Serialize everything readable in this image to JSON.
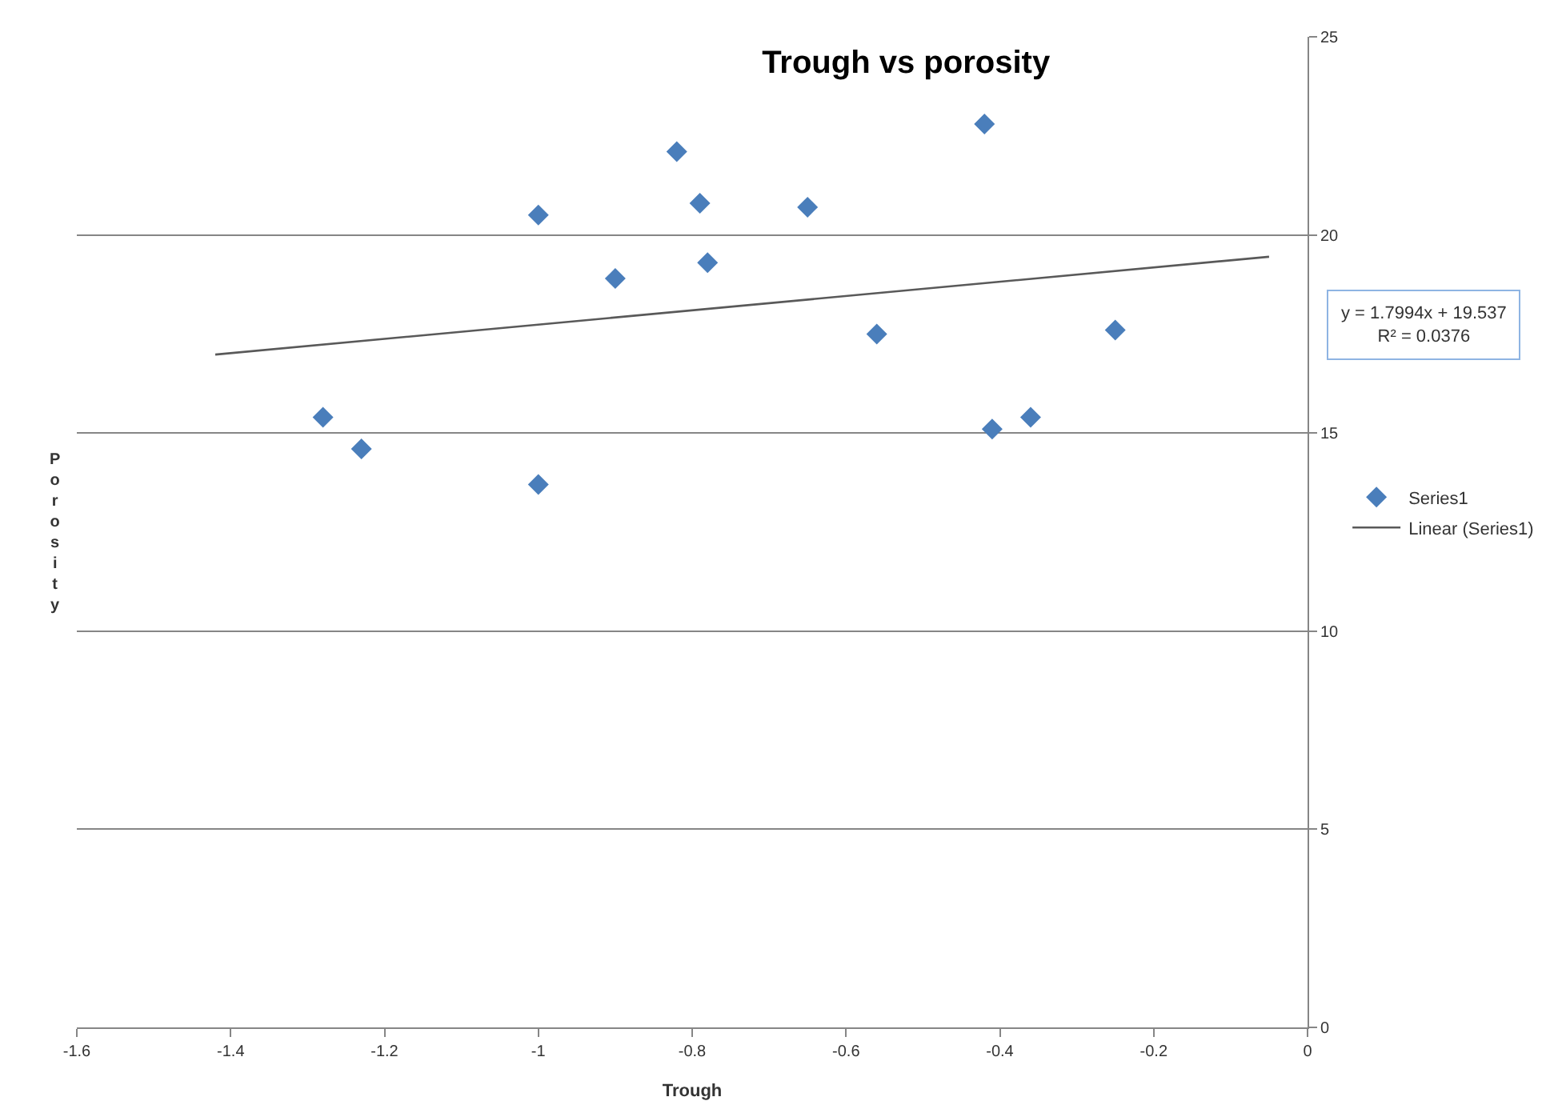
{
  "chart_data": {
    "type": "scatter",
    "title": "Trough vs porosity",
    "xlabel": "Trough",
    "ylabel": "Porosity",
    "series": [
      {
        "name": "Series1",
        "color": "#4a7ebb",
        "marker": "diamond",
        "x": [
          -1.28,
          -1.23,
          -1.0,
          -1.0,
          -0.9,
          -0.82,
          -0.79,
          -0.78,
          -0.65,
          -0.56,
          -0.42,
          -0.41,
          -0.36,
          -0.25
        ],
        "values": [
          15.4,
          14.6,
          13.7,
          20.5,
          18.9,
          22.1,
          20.8,
          19.3,
          20.7,
          17.5,
          22.8,
          15.1,
          15.4,
          17.6
        ]
      },
      {
        "name": "Linear (Series1)",
        "type": "line",
        "color": "#595959",
        "marker": "none",
        "line_style": "solid",
        "x": [
          -1.42,
          -0.05
        ],
        "values": [
          16.98,
          19.45
        ]
      }
    ],
    "annotations": [
      "y = 1.7994x + 19.537\nR² = 0.0376"
    ],
    "xlim": [
      -1.6,
      0
    ],
    "xticks": [
      {
        "value": -1.6,
        "label": "-1.6"
      },
      {
        "value": -1.4,
        "label": "-1.4"
      },
      {
        "value": -1.2,
        "label": "-1.2"
      },
      {
        "value": -1,
        "label": "-1"
      },
      {
        "value": -0.8,
        "label": "-0.8"
      },
      {
        "value": -0.6,
        "label": "-0.6"
      },
      {
        "value": -0.4,
        "label": "-0.4"
      },
      {
        "value": -0.2,
        "label": "-0.2"
      },
      0
    ],
    "ylim": [
      0,
      25
    ],
    "yticks": [
      0,
      5,
      10,
      15,
      20,
      25
    ],
    "grid": "y",
    "legend": "right"
  }
}
